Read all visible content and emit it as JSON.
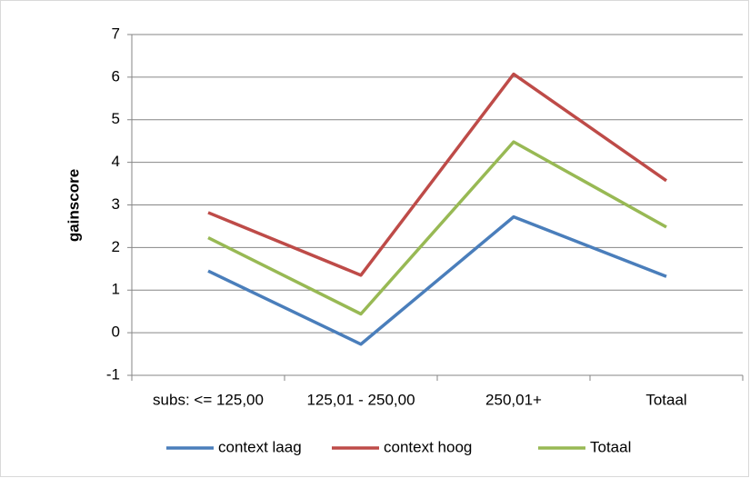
{
  "chart_data": {
    "type": "line",
    "y_label": "gainscore",
    "categories": [
      "subs: <= 125,00",
      "125,01 - 250,00",
      "250,01+",
      "Totaal"
    ],
    "series": [
      {
        "name": "context laag",
        "color": "#4a7ebb",
        "values": [
          1.45,
          -0.27,
          2.72,
          1.32
        ]
      },
      {
        "name": "context hoog",
        "color": "#be4b48",
        "values": [
          2.82,
          1.35,
          6.07,
          3.57
        ]
      },
      {
        "name": "Totaal",
        "color": "#98b954",
        "values": [
          2.23,
          0.44,
          4.48,
          2.48
        ]
      }
    ],
    "ylim": [
      -1,
      7
    ],
    "yticks": [
      -1,
      0,
      1,
      2,
      3,
      4,
      5,
      6,
      7
    ],
    "grid": true,
    "legend": "bottom"
  }
}
